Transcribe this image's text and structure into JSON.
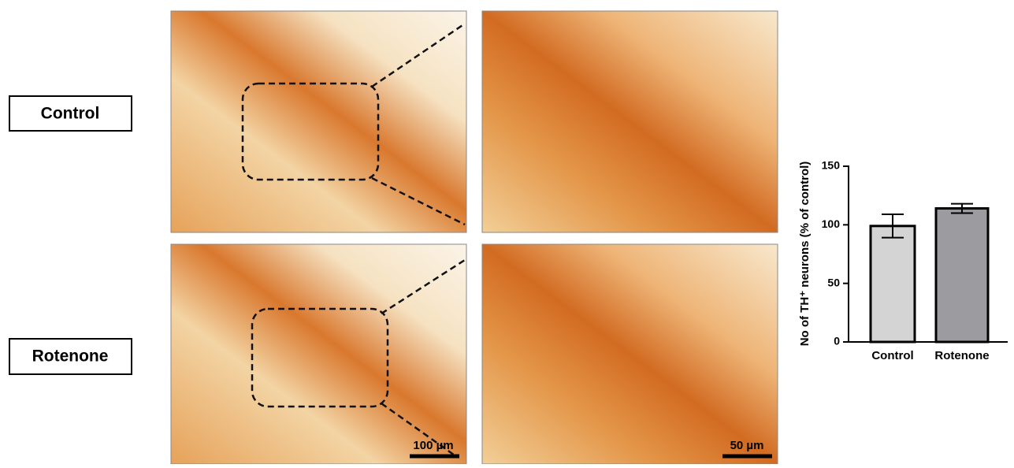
{
  "row_labels": [
    "Control",
    "Rotenone"
  ],
  "scale_bars": [
    "100 µm",
    "50 µm"
  ],
  "chart_data": {
    "type": "bar",
    "y_label": "No of TH⁺ neurons (% of control)",
    "categories": [
      "Control",
      "Rotenone"
    ],
    "values": [
      99,
      114
    ],
    "errors": [
      10,
      4
    ],
    "colors": [
      "#d4d4d4",
      "#9b9ba0"
    ],
    "ylim": [
      0,
      150
    ],
    "yticks": [
      0,
      50,
      100,
      150
    ]
  }
}
